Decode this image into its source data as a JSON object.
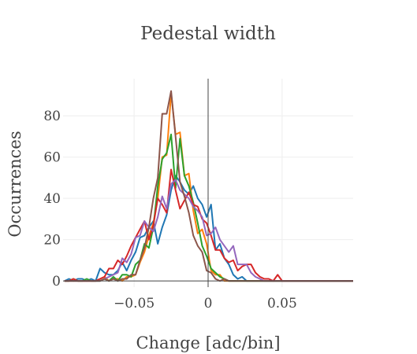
{
  "chart_data": {
    "type": "line",
    "title": "Pedestal width",
    "xlabel": "Change [adc/bin]",
    "ylabel": "Occurrences",
    "xlim": [
      -0.098,
      0.098
    ],
    "ylim": [
      -3,
      98
    ],
    "xticks": [
      {
        "value": -0.05,
        "label": "−0.05"
      },
      {
        "value": 0,
        "label": "0"
      },
      {
        "value": 0.05,
        "label": "0.05"
      }
    ],
    "yticks": [
      {
        "value": 0,
        "label": "0"
      },
      {
        "value": 20,
        "label": "20"
      },
      {
        "value": 40,
        "label": "40"
      },
      {
        "value": 60,
        "label": "60"
      },
      {
        "value": 80,
        "label": "80"
      }
    ],
    "grid": true,
    "x": [
      -0.097,
      -0.094,
      -0.091,
      -0.088,
      -0.085,
      -0.082,
      -0.079,
      -0.076,
      -0.073,
      -0.07,
      -0.067,
      -0.064,
      -0.061,
      -0.058,
      -0.055,
      -0.052,
      -0.049,
      -0.046,
      -0.043,
      -0.04,
      -0.037,
      -0.034,
      -0.031,
      -0.028,
      -0.025,
      -0.022,
      -0.019,
      -0.016,
      -0.013,
      -0.01,
      -0.007,
      -0.004,
      -0.001,
      0.002,
      0.005,
      0.008,
      0.011,
      0.014,
      0.017,
      0.02,
      0.023,
      0.026,
      0.029,
      0.032,
      0.035,
      0.038,
      0.041,
      0.044,
      0.047,
      0.05,
      0.053,
      0.056,
      0.059,
      0.062,
      0.065,
      0.068,
      0.071,
      0.074,
      0.077,
      0.08,
      0.083,
      0.086,
      0.089,
      0.092,
      0.095,
      0.098
    ],
    "series": [
      {
        "color": "#1f77b4",
        "values": [
          0,
          1,
          0,
          1,
          1,
          0,
          1,
          0,
          6,
          4,
          3,
          3,
          5,
          9,
          5,
          10,
          14,
          21,
          22,
          26,
          29,
          18,
          26,
          32,
          44,
          51,
          48,
          44,
          42,
          46,
          40,
          37,
          31,
          37,
          15,
          18,
          11,
          8,
          3,
          1,
          2,
          0,
          0,
          0,
          0,
          0,
          0,
          0,
          0,
          0,
          0,
          0,
          0,
          0,
          0,
          0,
          0,
          0,
          0,
          0,
          0,
          0,
          0,
          0,
          0,
          0
        ]
      },
      {
        "color": "#ff7f0e",
        "values": [
          0,
          0,
          0,
          0,
          0,
          0,
          0,
          0,
          1,
          2,
          0,
          1,
          1,
          0,
          2,
          2,
          3,
          9,
          14,
          22,
          28,
          40,
          60,
          61,
          91,
          71,
          72,
          51,
          52,
          34,
          23,
          25,
          18,
          5,
          3,
          3,
          0,
          0,
          0,
          0,
          0,
          0,
          0,
          0,
          0,
          0,
          0,
          0,
          0,
          0,
          0,
          0,
          0,
          0,
          0,
          0,
          0,
          0,
          0,
          0,
          0,
          0,
          0,
          0,
          0,
          0
        ]
      },
      {
        "color": "#2ca02c",
        "values": [
          0,
          0,
          1,
          0,
          0,
          1,
          0,
          0,
          0,
          1,
          0,
          2,
          0,
          3,
          3,
          2,
          8,
          10,
          18,
          16,
          26,
          46,
          59,
          62,
          71,
          45,
          69,
          51,
          46,
          38,
          28,
          17,
          12,
          6,
          4,
          2,
          1,
          0,
          0,
          0,
          0,
          0,
          0,
          0,
          0,
          0,
          0,
          0,
          0,
          0,
          0,
          0,
          0,
          0,
          0,
          0,
          0,
          0,
          0,
          0,
          0,
          0,
          0,
          0,
          0,
          0
        ]
      },
      {
        "color": "#d62728",
        "values": [
          0,
          0,
          1,
          0,
          0,
          0,
          0,
          0,
          1,
          2,
          6,
          6,
          10,
          8,
          12,
          17,
          21,
          25,
          29,
          20,
          27,
          40,
          37,
          33,
          54,
          44,
          35,
          39,
          43,
          37,
          36,
          30,
          28,
          22,
          15,
          15,
          11,
          9,
          10,
          5,
          7,
          8,
          8,
          4,
          2,
          1,
          1,
          0,
          3,
          0,
          0,
          0,
          0,
          0,
          0,
          0,
          0,
          0,
          0,
          0,
          0,
          0,
          0,
          0,
          0,
          0
        ]
      },
      {
        "color": "#9467bd",
        "values": [
          0,
          0,
          0,
          0,
          0,
          0,
          0,
          0,
          0,
          1,
          2,
          3,
          4,
          11,
          9,
          13,
          21,
          22,
          29,
          26,
          24,
          31,
          41,
          35,
          47,
          49,
          44,
          42,
          40,
          36,
          34,
          31,
          22,
          23,
          26,
          20,
          17,
          14,
          17,
          8,
          8,
          8,
          4,
          2,
          1,
          0,
          0,
          0,
          0,
          0,
          0,
          0,
          0,
          0,
          0,
          0,
          0,
          0,
          0,
          0,
          0,
          0,
          0,
          0,
          0,
          0
        ]
      },
      {
        "color": "#8c564b",
        "values": [
          0,
          0,
          0,
          0,
          0,
          0,
          0,
          0,
          0,
          1,
          0,
          1,
          0,
          1,
          1,
          3,
          3,
          10,
          16,
          26,
          40,
          50,
          81,
          81,
          92,
          70,
          48,
          41,
          33,
          22,
          17,
          14,
          5,
          4,
          1,
          0,
          1,
          0,
          0,
          0,
          0,
          0,
          0,
          0,
          0,
          0,
          0,
          0,
          0,
          0,
          0,
          0,
          0,
          0,
          0,
          0,
          0,
          0,
          0,
          0,
          0,
          0,
          0,
          0,
          0,
          0
        ]
      }
    ]
  }
}
